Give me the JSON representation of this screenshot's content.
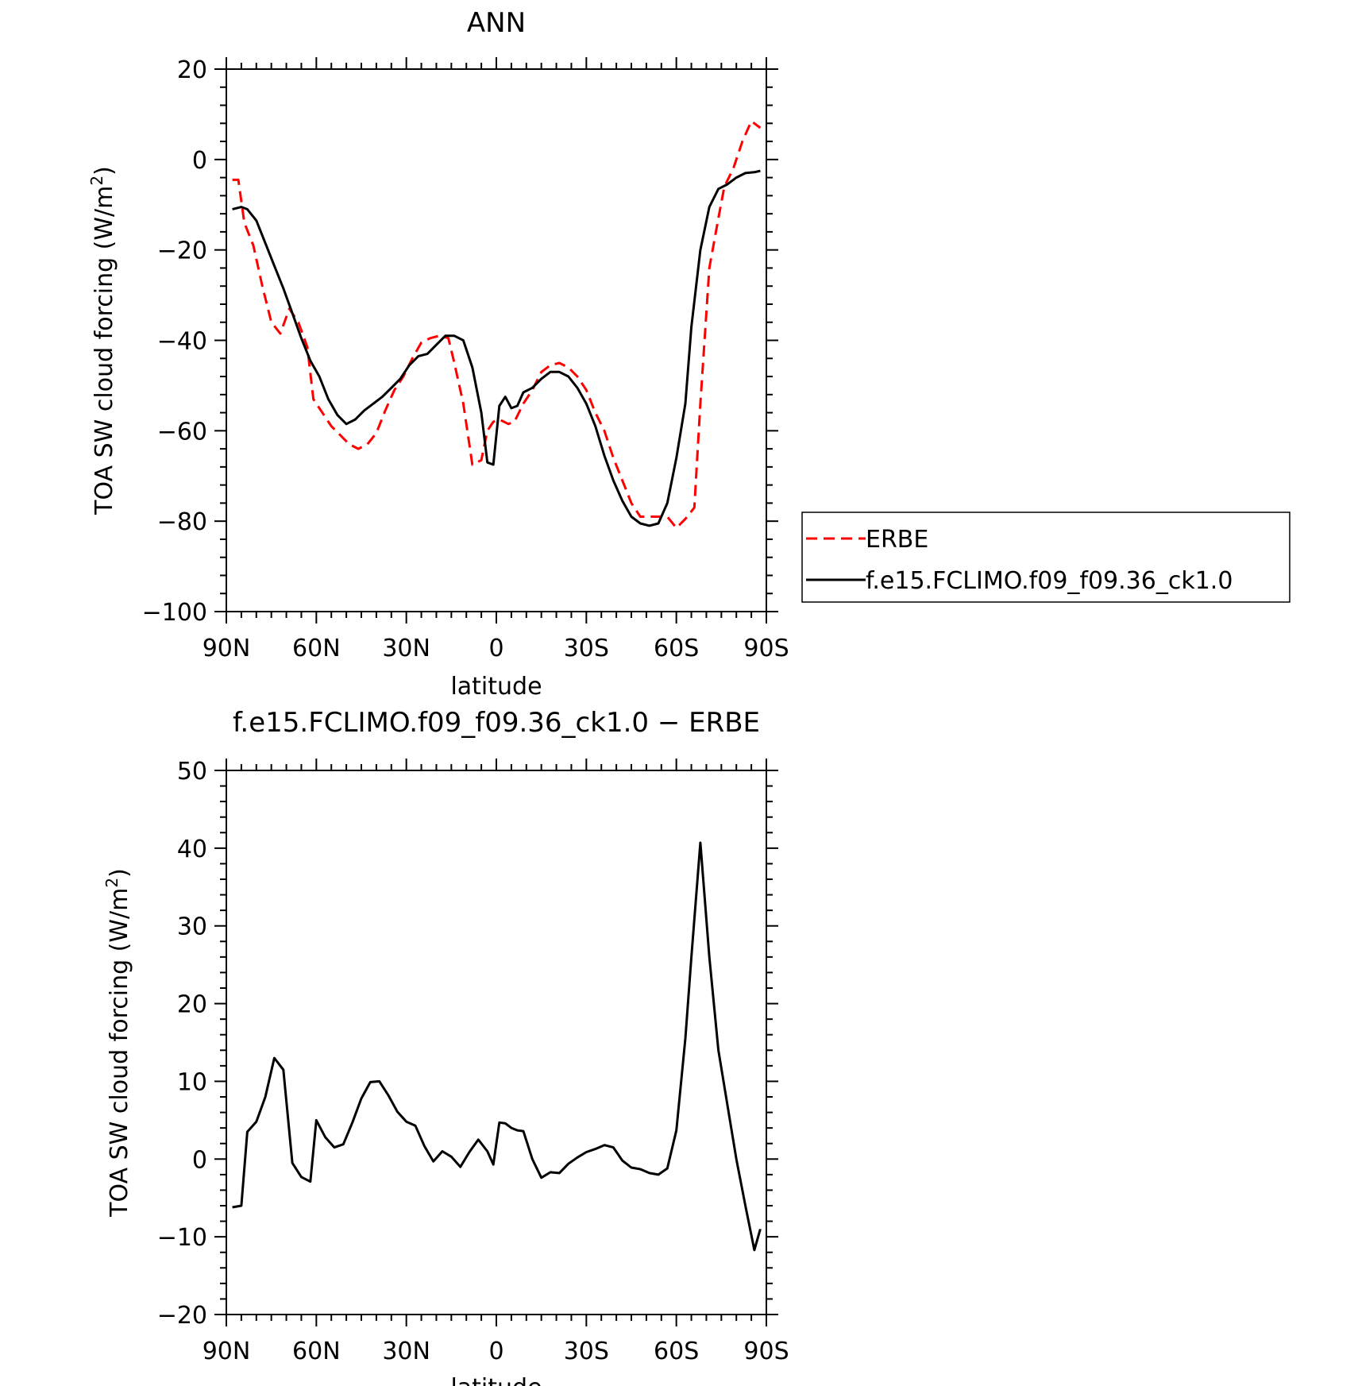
{
  "chart_data": [
    {
      "type": "line",
      "title": "ANN",
      "xlabel": "latitude",
      "ylabel": "TOA SW cloud forcing (W/m",
      "ylabel_sup": "2",
      "ylabel_close": ")",
      "xlim": [
        90,
        -90
      ],
      "ylim": [
        -100,
        20
      ],
      "x_ticks": [
        90,
        60,
        30,
        0,
        -30,
        -60,
        -90
      ],
      "x_ticklabels": [
        "90N",
        "60N",
        "30N",
        "0",
        "30S",
        "60S",
        "90S"
      ],
      "y_ticks": [
        20,
        0,
        -20,
        -40,
        -60,
        -80,
        -100
      ],
      "y_ticklabels": [
        "20",
        "0",
        "−20",
        "−40",
        "−60",
        "−80",
        "−100"
      ],
      "legend": [
        "ERBE",
        "f.e15.FCLIMO.f09_f09.36_ck1.0"
      ],
      "legend_position": "right",
      "series": [
        {
          "name": "ERBE",
          "color": "#ff0000",
          "style": "dashed",
          "x": [
            88,
            86,
            84,
            81,
            78,
            75,
            72,
            69,
            66,
            63,
            61,
            58,
            55,
            52,
            49,
            46,
            43,
            40,
            37,
            34,
            31,
            28,
            25,
            22,
            19,
            16,
            14,
            11,
            8,
            5,
            3,
            1,
            -1,
            -4,
            -6,
            -9,
            -12,
            -15,
            -18,
            -21,
            -24,
            -27,
            -30,
            -33,
            -36,
            -39,
            -42,
            -45,
            -48,
            -51,
            -54,
            -57,
            -60,
            -63,
            -66,
            -68,
            -71,
            -74,
            -76,
            -79,
            -82,
            -85,
            -88
          ],
          "y": [
            -4.5,
            -4.5,
            -14,
            -19,
            -28,
            -36,
            -38.5,
            -33,
            -36,
            -41.5,
            -53,
            -56,
            -59,
            -61,
            -63,
            -64,
            -63,
            -60.5,
            -55.5,
            -51,
            -48,
            -44,
            -40.5,
            -39.5,
            -39,
            -39.5,
            -45,
            -54,
            -67.5,
            -66.5,
            -60,
            -58,
            -57.5,
            -58.5,
            -58,
            -54,
            -51,
            -47,
            -45.5,
            -45,
            -46,
            -48,
            -51,
            -56,
            -60,
            -66,
            -71,
            -76,
            -79,
            -79,
            -79,
            -79,
            -81.5,
            -79.5,
            -77,
            -54,
            -24,
            -13,
            -6,
            -2,
            4,
            8.5,
            7
          ]
        },
        {
          "name": "f.e15.FCLIMO.f09_f09.36_ck1.0",
          "color": "#000000",
          "style": "solid",
          "x": [
            88,
            85,
            83,
            80,
            77,
            74,
            71,
            68,
            65,
            62,
            59,
            56,
            53,
            50,
            47,
            44,
            41,
            38,
            35,
            32,
            29,
            26,
            23,
            20,
            17,
            14,
            11,
            8,
            5,
            3,
            1,
            -1,
            -3,
            -5,
            -7,
            -9,
            -12,
            -15,
            -18,
            -21,
            -24,
            -27,
            -30,
            -33,
            -36,
            -39,
            -42,
            -45,
            -48,
            -51,
            -54,
            -57,
            -60,
            -63,
            -65,
            -68,
            -71,
            -74,
            -77,
            -80,
            -83,
            -86,
            -88
          ],
          "y": [
            -11,
            -10.5,
            -11,
            -13.5,
            -18.5,
            -23.5,
            -28.5,
            -34,
            -39.5,
            -44.5,
            -48,
            -53,
            -56.5,
            -58.5,
            -57.5,
            -55.5,
            -54,
            -52.5,
            -50.5,
            -48.5,
            -45.5,
            -43.5,
            -43,
            -41,
            -39,
            -39,
            -40,
            -46,
            -56,
            -67,
            -67.5,
            -54.5,
            -52.5,
            -55,
            -54.5,
            -51.5,
            -50.5,
            -48.5,
            -47,
            -47,
            -48,
            -50.5,
            -54,
            -59,
            -65.5,
            -71,
            -75.5,
            -79,
            -80.5,
            -81,
            -80.5,
            -76,
            -66,
            -54,
            -37,
            -20,
            -10.5,
            -6.5,
            -5.5,
            -4,
            -3,
            -2.8,
            -2.5
          ]
        }
      ]
    },
    {
      "type": "line",
      "title": "f.e15.FCLIMO.f09_f09.36_ck1.0 − ERBE",
      "xlabel": "latitude",
      "ylabel": "TOA SW cloud forcing (W/m",
      "ylabel_sup": "2",
      "ylabel_close": ")",
      "xlim": [
        90,
        -90
      ],
      "ylim": [
        -20,
        50
      ],
      "x_ticks": [
        90,
        60,
        30,
        0,
        -30,
        -60,
        -90
      ],
      "x_ticklabels": [
        "90N",
        "60N",
        "30N",
        "0",
        "30S",
        "60S",
        "90S"
      ],
      "y_ticks": [
        50,
        40,
        30,
        20,
        10,
        0,
        -10,
        -20
      ],
      "y_ticklabels": [
        "50",
        "40",
        "30",
        "20",
        "10",
        "0",
        "−10",
        "−20"
      ],
      "series": [
        {
          "color": "#000000",
          "style": "solid",
          "x": [
            88,
            85,
            83,
            80,
            77,
            74,
            71,
            68,
            65,
            62,
            60,
            57,
            54,
            51,
            48,
            45,
            42,
            39,
            36,
            33,
            30,
            27,
            24,
            21,
            18,
            15,
            12,
            9,
            6,
            3,
            1,
            -1,
            -3,
            -5,
            -7,
            -9,
            -12,
            -15,
            -18,
            -21,
            -24,
            -27,
            -30,
            -33,
            -36,
            -39,
            -42,
            -45,
            -48,
            -51,
            -54,
            -57,
            -60,
            -63,
            -65,
            -68,
            -71,
            -74,
            -77,
            -80,
            -83,
            -86,
            -88
          ],
          "y": [
            -6.2,
            -6,
            3.5,
            4.8,
            8,
            13,
            11.5,
            -0.5,
            -2.3,
            -2.9,
            5,
            2.8,
            1.5,
            1.9,
            4.7,
            7.8,
            9.9,
            10,
            8.2,
            6.1,
            4.8,
            4.3,
            1.7,
            -0.3,
            1,
            0.3,
            -1,
            0.9,
            2.5,
            1,
            -0.7,
            4.7,
            4.6,
            4,
            3.7,
            3.6,
            0,
            -2.4,
            -1.7,
            -1.8,
            -0.6,
            0.2,
            0.9,
            1.3,
            1.8,
            1.5,
            -0.2,
            -1.1,
            -1.3,
            -1.8,
            -2,
            -1.2,
            3.7,
            15.5,
            26,
            40.7,
            26,
            14,
            7,
            0,
            -6,
            -11.7,
            -9
          ]
        }
      ]
    }
  ]
}
